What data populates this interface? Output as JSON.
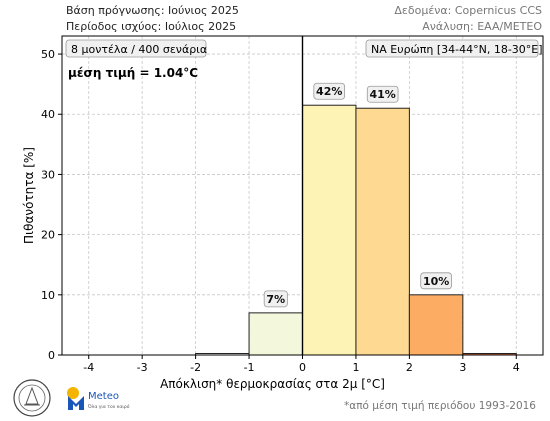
{
  "header": {
    "left_line1": "Βάση πρόγνωσης: Ιούνιος 2025",
    "left_line2": "Περίοδος ισχύος: Ιούλιος 2025",
    "right_line1": "Δεδομένα: Copernicus CCS",
    "right_line2": "Ανάλυση: EAA/METEO"
  },
  "footnote": "*από μέση τιμή περιόδου 1993-2016",
  "logos": {
    "meteo_text": "Meteo",
    "meteo_tagline": "Όλα για τον καιρό"
  },
  "chart_data": {
    "type": "bar",
    "bins": [
      {
        "from": -2,
        "to": -1,
        "value": 0.25,
        "label": "",
        "color": "#ffffff"
      },
      {
        "from": -1,
        "to": 0,
        "value": 7,
        "label": "7%",
        "color": "#f3f8dc"
      },
      {
        "from": 0,
        "to": 1,
        "value": 41.5,
        "label": "42%",
        "color": "#fdf3b5"
      },
      {
        "from": 1,
        "to": 2,
        "value": 41,
        "label": "41%",
        "color": "#fdd991"
      },
      {
        "from": 2,
        "to": 3,
        "value": 10,
        "label": "10%",
        "color": "#fdac64"
      },
      {
        "from": 3,
        "to": 4,
        "value": 0.25,
        "label": "",
        "color": "#ed6a3f"
      }
    ],
    "xlabel": "Απόκλιση* θερμοκρασίας στα 2μ [°C]",
    "ylabel": "Πιθανότητα [%]",
    "xlim": [
      -4.5,
      4.5
    ],
    "ylim": [
      0,
      53
    ],
    "xticks": [
      -4,
      -3,
      -2,
      -1,
      0,
      1,
      2,
      3,
      4
    ],
    "yticks": [
      0,
      10,
      20,
      30,
      40,
      50
    ],
    "zero_line_at": 0,
    "annotations": {
      "models": "8 μοντέλα / 400 σενάρια",
      "mean": "μέση τιμή = 1.04°C",
      "region": "ΝΑ Ευρώπη [34-44°N, 18-30°E]"
    }
  }
}
